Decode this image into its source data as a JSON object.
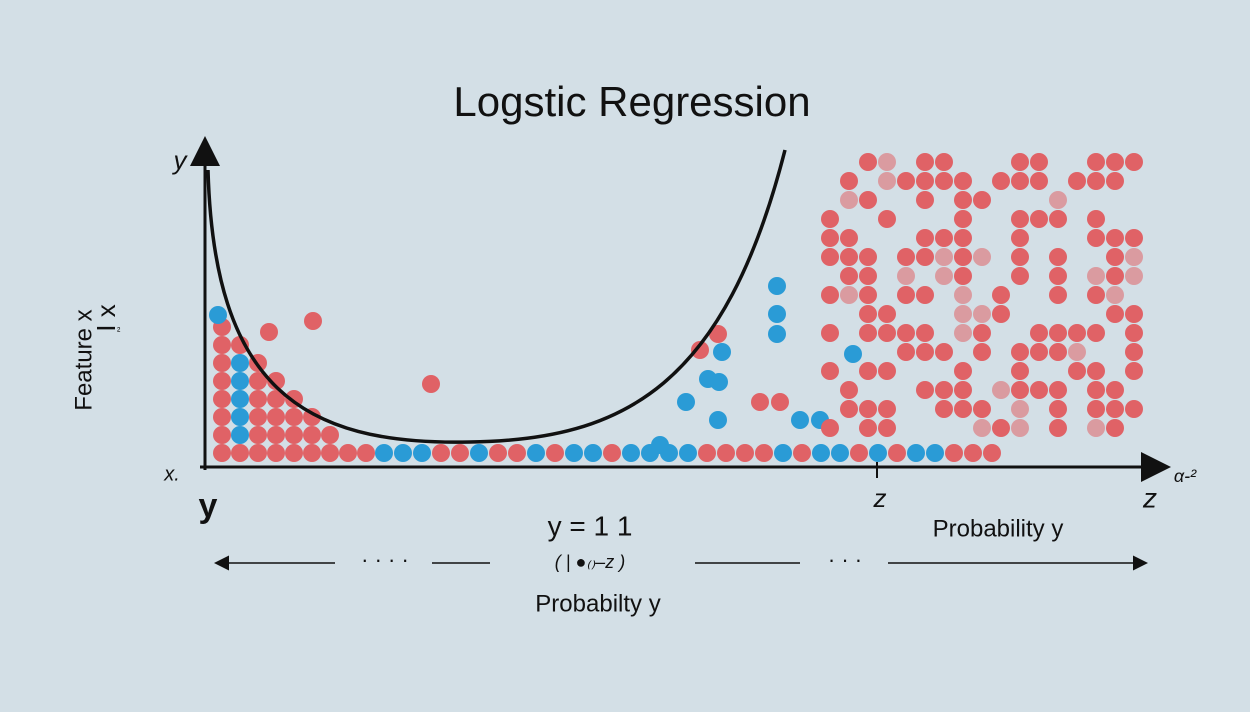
{
  "header": {
    "title": "Logstic Regression"
  },
  "axes": {
    "y_top": "y",
    "y_label": "Feature x",
    "y_label_2": "I x",
    "y_label_sup": "²",
    "x_origin": "x.",
    "y_bottom": "y",
    "x_end": "α-²",
    "z_mid": "z",
    "z_end": "z"
  },
  "formula": {
    "line1": "y = 1 1",
    "line2": "( | ●₍₎–z )",
    "caption": "Probabilty y",
    "dots_left": "· · · ·",
    "dots_right": "· · ·"
  },
  "right_caption": "Probability y"
}
